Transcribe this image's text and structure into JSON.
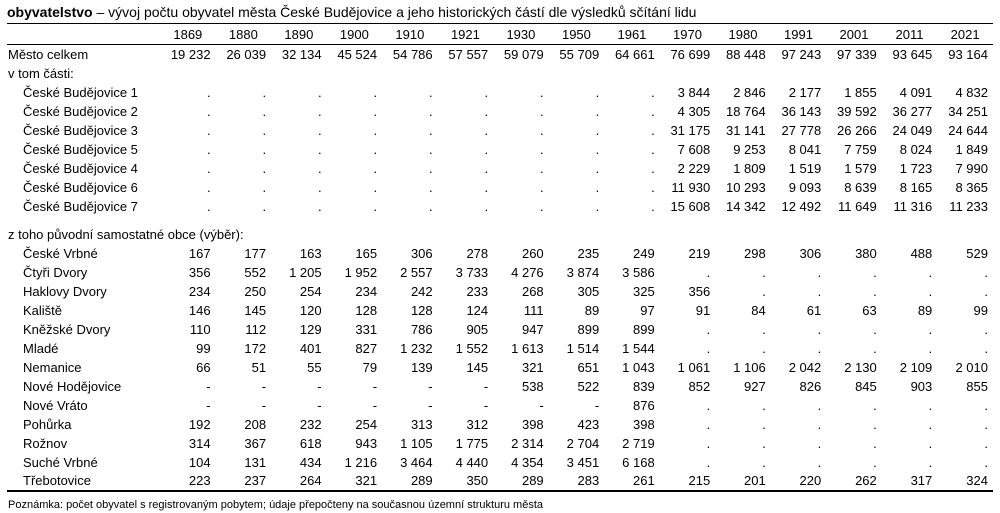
{
  "title": {
    "lead": "obyvatelstvo",
    "rest": " – vývoj počtu obyvatel města České Budějovice a jeho historických částí dle výsledků sčítání lidu"
  },
  "table": {
    "years": [
      "1869",
      "1880",
      "1890",
      "1900",
      "1910",
      "1921",
      "1930",
      "1950",
      "1961",
      "1970",
      "1980",
      "1991",
      "2001",
      "2011",
      "2021"
    ],
    "rows": [
      {
        "type": "data",
        "label": "Město celkem",
        "indent": false,
        "values": [
          "19 232",
          "26 039",
          "32 134",
          "45 524",
          "54 786",
          "57 557",
          "59 079",
          "55 709",
          "64 661",
          "76 699",
          "88 448",
          "97 243",
          "97 339",
          "93 645",
          "93 164"
        ]
      },
      {
        "type": "section",
        "label": "v tom části:"
      },
      {
        "type": "data",
        "label": "České Budějovice 1",
        "indent": true,
        "values": [
          ".",
          ".",
          ".",
          ".",
          ".",
          ".",
          ".",
          ".",
          ".",
          "3 844",
          "2 846",
          "2 177",
          "1 855",
          "4 091",
          "4 832"
        ]
      },
      {
        "type": "data",
        "label": "České Budějovice 2",
        "indent": true,
        "values": [
          ".",
          ".",
          ".",
          ".",
          ".",
          ".",
          ".",
          ".",
          ".",
          "4 305",
          "18 764",
          "36 143",
          "39 592",
          "36 277",
          "34 251"
        ]
      },
      {
        "type": "data",
        "label": "České Budějovice 3",
        "indent": true,
        "values": [
          ".",
          ".",
          ".",
          ".",
          ".",
          ".",
          ".",
          ".",
          ".",
          "31 175",
          "31 141",
          "27 778",
          "26 266",
          "24 049",
          "24 644"
        ]
      },
      {
        "type": "data",
        "label": "České Budějovice 5",
        "indent": true,
        "values": [
          ".",
          ".",
          ".",
          ".",
          ".",
          ".",
          ".",
          ".",
          ".",
          "7 608",
          "9 253",
          "8 041",
          "7 759",
          "8 024",
          "1 849"
        ]
      },
      {
        "type": "data",
        "label": "České Budějovice 4",
        "indent": true,
        "values": [
          ".",
          ".",
          ".",
          ".",
          ".",
          ".",
          ".",
          ".",
          ".",
          "2 229",
          "1 809",
          "1 519",
          "1 579",
          "1 723",
          "7 990"
        ]
      },
      {
        "type": "data",
        "label": "České Budějovice 6",
        "indent": true,
        "values": [
          ".",
          ".",
          ".",
          ".",
          ".",
          ".",
          ".",
          ".",
          ".",
          "11 930",
          "10 293",
          "9 093",
          "8 639",
          "8 165",
          "8 365"
        ]
      },
      {
        "type": "data",
        "label": "České Budějovice 7",
        "indent": true,
        "values": [
          ".",
          ".",
          ".",
          ".",
          ".",
          ".",
          ".",
          ".",
          ".",
          "15 608",
          "14 342",
          "12 492",
          "11 649",
          "11 316",
          "11 233"
        ]
      },
      {
        "type": "spacer"
      },
      {
        "type": "section",
        "label": "z toho původní samostatné obce (výběr):"
      },
      {
        "type": "data",
        "label": "České Vrbné",
        "indent": true,
        "values": [
          "167",
          "177",
          "163",
          "165",
          "306",
          "278",
          "260",
          "235",
          "249",
          "219",
          "298",
          "306",
          "380",
          "488",
          "529"
        ]
      },
      {
        "type": "data",
        "label": "Čtyři Dvory",
        "indent": true,
        "values": [
          "356",
          "552",
          "1 205",
          "1 952",
          "2 557",
          "3 733",
          "4 276",
          "3 874",
          "3 586",
          ".",
          ".",
          ".",
          ".",
          ".",
          "."
        ]
      },
      {
        "type": "data",
        "label": "Haklovy Dvory",
        "indent": true,
        "values": [
          "234",
          "250",
          "254",
          "234",
          "242",
          "233",
          "268",
          "305",
          "325",
          "356",
          ".",
          ".",
          ".",
          ".",
          "."
        ]
      },
      {
        "type": "data",
        "label": "Kaliště",
        "indent": true,
        "values": [
          "146",
          "145",
          "120",
          "128",
          "128",
          "124",
          "111",
          "89",
          "97",
          "91",
          "84",
          "61",
          "63",
          "89",
          "99"
        ]
      },
      {
        "type": "data",
        "label": "Kněžské Dvory",
        "indent": true,
        "values": [
          "110",
          "112",
          "129",
          "331",
          "786",
          "905",
          "947",
          "899",
          "899",
          ".",
          ".",
          ".",
          ".",
          ".",
          "."
        ]
      },
      {
        "type": "data",
        "label": "Mladé",
        "indent": true,
        "values": [
          "99",
          "172",
          "401",
          "827",
          "1 232",
          "1 552",
          "1 613",
          "1 514",
          "1 544",
          ".",
          ".",
          ".",
          ".",
          ".",
          "."
        ]
      },
      {
        "type": "data",
        "label": "Nemanice",
        "indent": true,
        "values": [
          "66",
          "51",
          "55",
          "79",
          "139",
          "145",
          "321",
          "651",
          "1 043",
          "1 061",
          "1 106",
          "2 042",
          "2 130",
          "2 109",
          "2 010"
        ]
      },
      {
        "type": "data",
        "label": "Nové Hodějovice",
        "indent": true,
        "values": [
          "-",
          "-",
          "-",
          "-",
          "-",
          "-",
          "538",
          "522",
          "839",
          "852",
          "927",
          "826",
          "845",
          "903",
          "855"
        ]
      },
      {
        "type": "data",
        "label": "Nové Vráto",
        "indent": true,
        "values": [
          "-",
          "-",
          "-",
          "-",
          "-",
          "-",
          "-",
          "-",
          "876",
          ".",
          ".",
          ".",
          ".",
          ".",
          "."
        ]
      },
      {
        "type": "data",
        "label": "Pohůrka",
        "indent": true,
        "values": [
          "192",
          "208",
          "232",
          "254",
          "313",
          "312",
          "398",
          "423",
          "398",
          ".",
          ".",
          ".",
          ".",
          ".",
          "."
        ]
      },
      {
        "type": "data",
        "label": "Rožnov",
        "indent": true,
        "values": [
          "314",
          "367",
          "618",
          "943",
          "1 105",
          "1 775",
          "2 314",
          "2 704",
          "2 719",
          ".",
          ".",
          ".",
          ".",
          ".",
          "."
        ]
      },
      {
        "type": "data",
        "label": "Suché Vrbné",
        "indent": true,
        "values": [
          "104",
          "131",
          "434",
          "1 216",
          "3 464",
          "4 440",
          "4 354",
          "3 451",
          "6 168",
          ".",
          ".",
          ".",
          ".",
          ".",
          "."
        ]
      },
      {
        "type": "data",
        "label": "Třebotovice",
        "indent": true,
        "values": [
          "223",
          "237",
          "264",
          "321",
          "289",
          "350",
          "289",
          "283",
          "261",
          "215",
          "201",
          "220",
          "262",
          "317",
          "324"
        ]
      }
    ]
  },
  "footnote": "Poznámka: počet obyvatel s registrovaným pobytem; údaje přepočteny na současnou územní strukturu města"
}
